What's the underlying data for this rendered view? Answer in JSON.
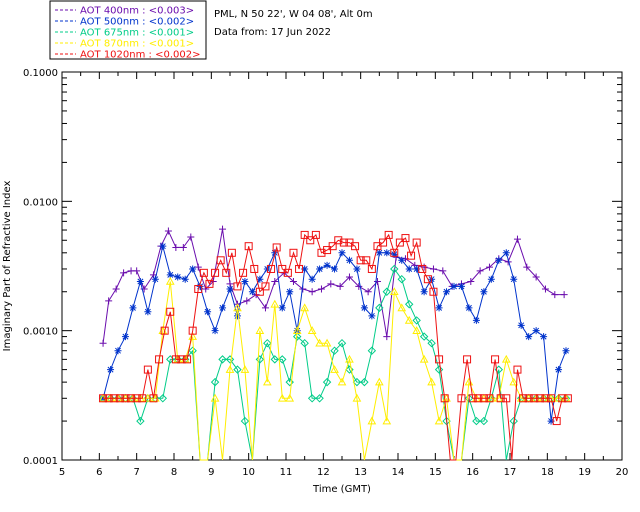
{
  "header": {
    "site_line": "PML, N 50 22', W 04 08', Alt 0m",
    "date_line": "Data from: 17 Jun 2022"
  },
  "chart_data": {
    "type": "line",
    "xlabel": "Time (GMT)",
    "ylabel": "Imaginary Part of Refractive Index",
    "xlim": [
      5,
      20
    ],
    "ylim": [
      0.0001,
      0.1
    ],
    "yscale": "log",
    "x_ticks": [
      5,
      6,
      7,
      8,
      9,
      10,
      11,
      12,
      13,
      14,
      15,
      16,
      17,
      18,
      19,
      20
    ],
    "y_ticks": [
      {
        "value": 0.0001,
        "label": "0.0001"
      },
      {
        "value": 0.001,
        "label": "0.0010"
      },
      {
        "value": 0.01,
        "label": "0.0100"
      },
      {
        "value": 0.1,
        "label": "0.1000"
      }
    ],
    "grid": false,
    "legend_position": "top-left-outside",
    "series": [
      {
        "name": "AOT  400nm : <0.003>",
        "color": "#6a0dad",
        "marker": "plus",
        "x": [
          6.1,
          6.25,
          6.45,
          6.65,
          6.85,
          7.0,
          7.2,
          7.45,
          7.65,
          7.85,
          8.05,
          8.25,
          8.45,
          8.65,
          8.85,
          9.05,
          9.3,
          9.5,
          9.7,
          9.95,
          10.2,
          10.45,
          10.7,
          10.95,
          11.2,
          11.45,
          11.7,
          11.95,
          12.2,
          12.45,
          12.7,
          12.95,
          13.2,
          13.45,
          13.7,
          13.95,
          14.2,
          14.45,
          14.7,
          14.95,
          15.2,
          15.45,
          15.7,
          15.95,
          16.2,
          16.45,
          16.7,
          16.95,
          17.2,
          17.45,
          17.7,
          17.95,
          18.2,
          18.45
        ],
        "y": [
          0.0008,
          0.0017,
          0.0021,
          0.0028,
          0.0029,
          0.0029,
          0.0021,
          0.0027,
          0.0045,
          0.0059,
          0.0044,
          0.0044,
          0.0053,
          0.0031,
          0.0021,
          0.0024,
          0.0061,
          0.0023,
          0.0016,
          0.0017,
          0.0019,
          0.0015,
          0.0024,
          0.0028,
          0.0024,
          0.0021,
          0.002,
          0.0021,
          0.0023,
          0.0022,
          0.0026,
          0.0022,
          0.002,
          0.0024,
          0.0009,
          0.0037,
          0.0036,
          0.0032,
          0.0031,
          0.003,
          0.0029,
          0.0022,
          0.0023,
          0.0024,
          0.0029,
          0.0031,
          0.0036,
          0.0034,
          0.0051,
          0.0031,
          0.0026,
          0.0021,
          0.0019,
          0.0019
        ]
      },
      {
        "name": "AOT  500nm : <0.002>",
        "color": "#0033cc",
        "marker": "asterisk",
        "x": [
          6.1,
          6.3,
          6.5,
          6.7,
          6.9,
          7.1,
          7.3,
          7.5,
          7.7,
          7.9,
          8.1,
          8.3,
          8.5,
          8.7,
          8.9,
          9.1,
          9.3,
          9.5,
          9.7,
          9.9,
          10.1,
          10.3,
          10.5,
          10.7,
          10.9,
          11.1,
          11.3,
          11.5,
          11.7,
          11.9,
          12.1,
          12.3,
          12.5,
          12.7,
          12.9,
          13.1,
          13.3,
          13.5,
          13.7,
          13.9,
          14.1,
          14.3,
          14.5,
          14.7,
          14.9,
          15.1,
          15.3,
          15.5,
          15.7,
          15.9,
          16.1,
          16.3,
          16.5,
          16.7,
          16.9,
          17.1,
          17.3,
          17.5,
          17.7,
          17.9,
          18.1,
          18.3,
          18.5
        ],
        "y": [
          0.0003,
          0.0005,
          0.0007,
          0.0009,
          0.0015,
          0.0024,
          0.0014,
          0.0025,
          0.0045,
          0.0027,
          0.0026,
          0.0025,
          0.003,
          0.0022,
          0.0014,
          0.001,
          0.0015,
          0.0021,
          0.0013,
          0.0024,
          0.002,
          0.0025,
          0.003,
          0.004,
          0.0015,
          0.002,
          0.001,
          0.003,
          0.0025,
          0.003,
          0.0032,
          0.003,
          0.004,
          0.0035,
          0.003,
          0.0015,
          0.0013,
          0.004,
          0.004,
          0.0039,
          0.0035,
          0.003,
          0.003,
          0.002,
          0.0025,
          0.0015,
          0.002,
          0.0022,
          0.0022,
          0.0015,
          0.0012,
          0.002,
          0.0025,
          0.0035,
          0.004,
          0.0025,
          0.0011,
          0.0009,
          0.001,
          0.0009,
          0.0002,
          0.0005,
          0.0007
        ]
      },
      {
        "name": "AOT  675nm : <0.001>",
        "color": "#00cc88",
        "marker": "diamond",
        "x": [
          6.1,
          6.3,
          6.5,
          6.7,
          6.9,
          7.1,
          7.3,
          7.5,
          7.7,
          7.9,
          8.1,
          8.3,
          8.5,
          8.7,
          8.9,
          9.1,
          9.3,
          9.5,
          9.7,
          9.9,
          10.1,
          10.3,
          10.5,
          10.7,
          10.9,
          11.1,
          11.3,
          11.5,
          11.7,
          11.9,
          12.1,
          12.3,
          12.5,
          12.7,
          12.9,
          13.1,
          13.3,
          13.5,
          13.7,
          13.9,
          14.1,
          14.3,
          14.5,
          14.7,
          14.9,
          15.1,
          15.3,
          15.5,
          15.7,
          15.9,
          16.1,
          16.3,
          16.5,
          16.7,
          16.9,
          17.1,
          17.3,
          17.5,
          17.7,
          17.9,
          18.1,
          18.3,
          18.5
        ],
        "y": [
          0.0003,
          0.0003,
          0.0003,
          0.0003,
          0.0003,
          0.0002,
          0.0003,
          0.0003,
          0.0003,
          0.0006,
          0.0006,
          0.0006,
          0.0007,
          0.0001,
          0.0001,
          0.0004,
          0.0006,
          0.0006,
          0.0005,
          0.0002,
          0.0001,
          0.0006,
          0.0008,
          0.0006,
          0.0006,
          0.0004,
          0.0009,
          0.0008,
          0.0003,
          0.0003,
          0.0004,
          0.0007,
          0.0008,
          0.0005,
          0.0004,
          0.0004,
          0.0007,
          0.0015,
          0.002,
          0.003,
          0.0025,
          0.0016,
          0.0012,
          0.0009,
          0.0008,
          0.0005,
          0.0002,
          0.0001,
          0.0001,
          0.0003,
          0.0002,
          0.0002,
          0.0003,
          0.0005,
          0.0001,
          0.0002,
          0.0003,
          0.0003,
          0.0003,
          0.0003,
          0.0003,
          0.0003,
          0.0003
        ]
      },
      {
        "name": "AOT  870nm : <0.001>",
        "color": "#ffee00",
        "marker": "triangle",
        "x": [
          6.1,
          6.3,
          6.5,
          6.7,
          6.9,
          7.1,
          7.3,
          7.5,
          7.7,
          7.9,
          8.1,
          8.3,
          8.5,
          8.7,
          8.9,
          9.1,
          9.3,
          9.5,
          9.7,
          9.9,
          10.1,
          10.3,
          10.5,
          10.7,
          10.9,
          11.1,
          11.3,
          11.5,
          11.7,
          11.9,
          12.1,
          12.3,
          12.5,
          12.7,
          12.9,
          13.1,
          13.3,
          13.5,
          13.7,
          13.9,
          14.1,
          14.3,
          14.5,
          14.7,
          14.9,
          15.1,
          15.3,
          15.5,
          15.7,
          15.9,
          16.1,
          16.3,
          16.5,
          16.7,
          16.9,
          17.1,
          17.3,
          17.5,
          17.7,
          17.9,
          18.1,
          18.3,
          18.5
        ],
        "y": [
          0.0003,
          0.0003,
          0.0003,
          0.0003,
          0.0003,
          0.0003,
          0.0003,
          0.0003,
          0.001,
          0.0024,
          0.0006,
          0.0006,
          0.0009,
          0.0001,
          0.0001,
          0.0003,
          0.0001,
          0.0005,
          0.0015,
          0.0005,
          0.0001,
          0.001,
          0.0004,
          0.0016,
          0.0003,
          0.0003,
          0.001,
          0.0015,
          0.001,
          0.0008,
          0.0008,
          0.0005,
          0.0004,
          0.0006,
          0.0003,
          0.0001,
          0.0002,
          0.0004,
          0.0002,
          0.002,
          0.0015,
          0.0012,
          0.001,
          0.0006,
          0.0004,
          0.0002,
          0.0003,
          0.0001,
          0.0001,
          0.0004,
          0.0003,
          0.0003,
          0.0003,
          0.0003,
          0.0006,
          0.0004,
          0.0003,
          0.0003,
          0.0003,
          0.0003,
          0.0003,
          0.0003,
          0.0003
        ]
      },
      {
        "name": "AOT 1020nm : <0.002>",
        "color": "#ee1111",
        "marker": "square",
        "x": [
          6.1,
          6.25,
          6.4,
          6.55,
          6.7,
          6.85,
          7.0,
          7.15,
          7.3,
          7.45,
          7.6,
          7.75,
          7.9,
          8.05,
          8.2,
          8.35,
          8.5,
          8.65,
          8.8,
          8.95,
          9.1,
          9.25,
          9.4,
          9.55,
          9.7,
          9.85,
          10.0,
          10.15,
          10.3,
          10.45,
          10.6,
          10.75,
          10.9,
          11.05,
          11.2,
          11.35,
          11.5,
          11.65,
          11.8,
          11.95,
          12.1,
          12.25,
          12.4,
          12.55,
          12.7,
          12.85,
          13.0,
          13.15,
          13.3,
          13.45,
          13.6,
          13.75,
          13.9,
          14.05,
          14.2,
          14.35,
          14.5,
          14.65,
          14.8,
          14.95,
          15.1,
          15.25,
          15.4,
          15.55,
          15.7,
          15.85,
          16.0,
          16.15,
          16.3,
          16.45,
          16.6,
          16.75,
          16.9,
          17.05,
          17.2,
          17.35,
          17.5,
          17.65,
          17.8,
          17.95,
          18.1,
          18.25,
          18.4,
          18.55
        ],
        "y": [
          0.0003,
          0.0003,
          0.0003,
          0.0003,
          0.0003,
          0.0003,
          0.0003,
          0.0003,
          0.0005,
          0.0003,
          0.0006,
          0.001,
          0.0014,
          0.0006,
          0.0006,
          0.0006,
          0.001,
          0.0021,
          0.0028,
          0.0023,
          0.0028,
          0.0035,
          0.0028,
          0.004,
          0.0022,
          0.0028,
          0.0045,
          0.003,
          0.002,
          0.0022,
          0.003,
          0.0044,
          0.003,
          0.0028,
          0.004,
          0.003,
          0.0055,
          0.005,
          0.0055,
          0.004,
          0.0042,
          0.0045,
          0.005,
          0.0048,
          0.0048,
          0.0045,
          0.0035,
          0.0035,
          0.003,
          0.0045,
          0.0048,
          0.0055,
          0.004,
          0.0048,
          0.0052,
          0.0038,
          0.0048,
          0.003,
          0.0025,
          0.002,
          0.0006,
          0.0003,
          0.0001,
          0.0001,
          0.0003,
          0.0006,
          0.0003,
          0.0003,
          0.0003,
          0.0003,
          0.0006,
          0.0003,
          0.0003,
          0.0001,
          0.0005,
          0.0003,
          0.0003,
          0.0003,
          0.0003,
          0.0003,
          0.0003,
          0.0002,
          0.0003,
          0.0003
        ]
      }
    ]
  }
}
